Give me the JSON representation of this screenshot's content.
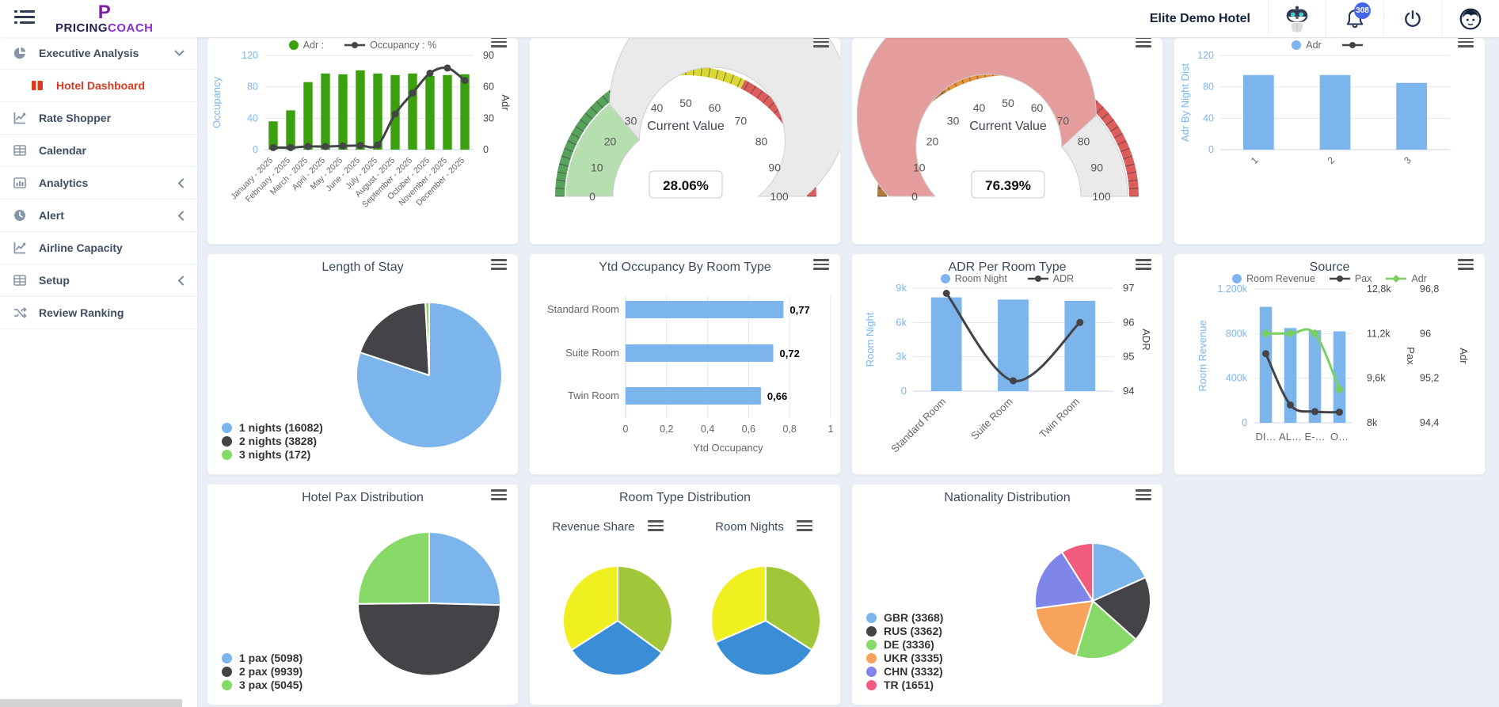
{
  "header": {
    "brand_initial": "P",
    "brand_name_left": "PRICING",
    "brand_name_right": "COACH",
    "hotel_name": "Elite Demo Hotel",
    "notifications_count": "308"
  },
  "sidebar": {
    "items": [
      {
        "label": "Executive Analysis",
        "icon": "pie",
        "chevron": "down"
      },
      {
        "label": "Hotel Dashboard",
        "icon": "dashboard",
        "sub": true,
        "active": true
      },
      {
        "label": "Rate Shopper",
        "icon": "chartline"
      },
      {
        "label": "Calendar",
        "icon": "table"
      },
      {
        "label": "Analytics",
        "icon": "chartbar",
        "chevron": "left"
      },
      {
        "label": "Alert",
        "icon": "clock",
        "chevron": "left"
      },
      {
        "label": "Airline Capacity",
        "icon": "chartline"
      },
      {
        "label": "Setup",
        "icon": "table",
        "chevron": "left"
      },
      {
        "label": "Review Ranking",
        "icon": "shuffle"
      }
    ]
  },
  "charts": {
    "monthly": {
      "legend": [
        {
          "label": "Adr :",
          "color": "#3aa00e",
          "shape": "circle"
        },
        {
          "label": "Occupancy : %",
          "color": "#434348",
          "shape": "line"
        }
      ],
      "categories": [
        "January - 2025",
        "February - 2025",
        "March - 2025",
        "April - 2025",
        "May - 2025",
        "June - 2025",
        "July - 2025",
        "August - 2025",
        "September - 2025",
        "October - 2025",
        "November - 2025",
        "December - 2025"
      ],
      "bar_series": {
        "name": "Adr",
        "color": "#3aa00e",
        "values": [
          36,
          50,
          86,
          97,
          96,
          101,
          97,
          95,
          97,
          94,
          95,
          96
        ]
      },
      "line_series": {
        "name": "Occupancy %",
        "color": "#434348",
        "marker": "circle",
        "values": [
          2,
          2,
          3,
          3,
          3.5,
          4,
          4.5,
          34,
          54,
          73,
          78,
          66
        ],
        "min": 0,
        "max": 90
      },
      "left_axis": {
        "title": "Occupancy",
        "color": "#7cb5ec",
        "ticks": [
          "0",
          "40",
          "80",
          "120"
        ],
        "max": 120
      },
      "right_axis": {
        "title": "Adr",
        "ticks": [
          "0",
          "30",
          "60",
          "90"
        ]
      }
    },
    "gauge_occupancy": {
      "center_label": "Current Value",
      "value": 28.06,
      "display": "28.06%",
      "inner_color": "#b5dfae",
      "rest_color": "#eaeaea",
      "segments": [
        {
          "to": 33,
          "color": "#58a35c"
        },
        {
          "to": 65,
          "color": "#dbd836"
        },
        {
          "to": 100,
          "color": "#dd5c5c"
        }
      ],
      "tick_labels": [
        0,
        10,
        20,
        30,
        40,
        50,
        60,
        70,
        80,
        90,
        100
      ]
    },
    "gauge_adr": {
      "center_label": "Current Value",
      "value": 76.39,
      "display": "76.39%",
      "inner_color": "#e59c9c",
      "rest_color": "#eaeaea",
      "segments": [
        {
          "to": 33,
          "color": "#b07a3e"
        },
        {
          "to": 65,
          "color": "#e6953a"
        },
        {
          "to": 100,
          "color": "#dd5c5c"
        }
      ],
      "tick_labels": [
        0,
        10,
        20,
        30,
        40,
        50,
        60,
        70,
        80,
        90,
        100
      ]
    },
    "adr_by_night": {
      "legend": [
        {
          "label": "Adr",
          "color": "#7cb5ec",
          "shape": "circle"
        },
        {
          "label": "",
          "color": "#434348",
          "shape": "line"
        }
      ],
      "categories": [
        "1",
        "2",
        "3"
      ],
      "bar_series": {
        "name": "Adr",
        "color": "#7cb5ec",
        "values": [
          95,
          95,
          85
        ]
      },
      "left_axis": {
        "title": "Adr By Night Dist",
        "color": "#7cb5ec",
        "ticks": [
          "0",
          "40",
          "80",
          "120"
        ],
        "max": 120
      }
    },
    "length_of_stay": {
      "title": "Length of Stay",
      "slices": [
        {
          "label": "1 nights (16082)",
          "value": 16082,
          "color": "#7cb5ec"
        },
        {
          "label": "2 nights (3828)",
          "value": 3828,
          "color": "#434348"
        },
        {
          "label": "3 nights (172)",
          "value": 172,
          "color": "#87da68"
        }
      ]
    },
    "ytd_occupancy": {
      "title": "Ytd Occupancy By Room Type",
      "categories": [
        "Standard Room",
        "Suite Room",
        "Twin Room"
      ],
      "values": [
        0.77,
        0.72,
        0.66
      ],
      "value_labels": [
        "0,77",
        "0,72",
        "0,66"
      ],
      "color": "#7cb5ec",
      "x_ticks": [
        "0",
        "0,2",
        "0,4",
        "0,6",
        "0,8",
        "1"
      ],
      "xmax": 1,
      "xlabel": "Ytd Occupancy"
    },
    "adr_per_room": {
      "title": "ADR Per Room Type",
      "legend": [
        {
          "label": "Room Night",
          "color": "#7cb5ec",
          "shape": "circle"
        },
        {
          "label": "ADR",
          "color": "#434348",
          "shape": "line"
        }
      ],
      "categories": [
        "Standard Room",
        "Suite Room",
        "Twin Room"
      ],
      "bar_series": {
        "name": "Room Night",
        "color": "#7cb5ec",
        "values": [
          8200,
          8000,
          7900
        ]
      },
      "line_series": {
        "name": "ADR",
        "color": "#434348",
        "marker": "circle",
        "values": [
          96.85,
          94.3,
          96.0
        ],
        "min": 94,
        "max": 97
      },
      "left_axis": {
        "title": "Room Night",
        "color": "#7cb5ec",
        "ticks": [
          "0",
          "3k",
          "6k",
          "9k"
        ],
        "max": 9000
      },
      "right_axis": {
        "title": "ADR",
        "ticks": [
          "94",
          "95",
          "96",
          "97"
        ]
      }
    },
    "source": {
      "title": "Source",
      "legend": [
        {
          "label": "Room Revenue",
          "color": "#7cb5ec",
          "shape": "circle"
        },
        {
          "label": "Pax",
          "color": "#434348",
          "shape": "line"
        },
        {
          "label": "Adr",
          "color": "#7ad05e",
          "shape": "diamond"
        }
      ],
      "categories": [
        "DI…",
        "AL…",
        "E-…",
        "O…"
      ],
      "bar_series": {
        "name": "Room Revenue",
        "color": "#7cb5ec",
        "values": [
          1040,
          850,
          830,
          820
        ]
      },
      "lines": [
        {
          "name": "Pax",
          "color": "#434348",
          "marker": "circle",
          "values": [
            10.48,
            8.64,
            8.4,
            8.38
          ],
          "min": 8,
          "max": 12.8
        },
        {
          "name": "Adr",
          "color": "#7ad05e",
          "marker": "diamond",
          "values": [
            96,
            96,
            96,
            95
          ],
          "min": 94.4,
          "max": 96.8
        }
      ],
      "left_axis": {
        "title": "Room Revenue",
        "color": "#7cb5ec",
        "ticks": [
          "0",
          "400k",
          "800k",
          "1.200k"
        ],
        "max": 1200
      },
      "right_axes": [
        {
          "title": "Pax",
          "ticks": [
            "8k",
            "9,6k",
            "11,2k",
            "12,8k"
          ]
        },
        {
          "title": "Adr",
          "ticks": [
            "94,4",
            "95,2",
            "96",
            "96,8"
          ]
        }
      ]
    },
    "hotel_pax": {
      "title": "Hotel Pax Distribution",
      "slices": [
        {
          "label": "1 pax (5098)",
          "value": 5098,
          "color": "#7cb5ec"
        },
        {
          "label": "2 pax (9939)",
          "value": 9939,
          "color": "#434348"
        },
        {
          "label": "3 pax (5045)",
          "value": 5045,
          "color": "#87da68"
        }
      ]
    },
    "room_type": {
      "title": "Room Type Distribution",
      "pies": [
        {
          "subtitle": "Revenue Share",
          "slices": [
            {
              "label": "green",
              "value": 35,
              "color": "#a2c63a"
            },
            {
              "label": "blue",
              "value": 31,
              "color": "#3a8ed6"
            },
            {
              "label": "yellow",
              "value": 34,
              "color": "#f0f021"
            }
          ]
        },
        {
          "subtitle": "Room Nights",
          "slices": [
            {
              "label": "green",
              "value": 34,
              "color": "#a2c63a"
            },
            {
              "label": "blue",
              "value": 34.5,
              "color": "#3a8ed6"
            },
            {
              "label": "yellow",
              "value": 31.5,
              "color": "#f0f021"
            }
          ]
        }
      ]
    },
    "nationality": {
      "title": "Nationality Distribution",
      "slices": [
        {
          "label": "GBR (3368)",
          "value": 3368,
          "color": "#7cb5ec"
        },
        {
          "label": "RUS (3362)",
          "value": 3362,
          "color": "#434348"
        },
        {
          "label": "DE (3336)",
          "value": 3336,
          "color": "#87da68"
        },
        {
          "label": "UKR (3335)",
          "value": 3335,
          "color": "#f7a35c"
        },
        {
          "label": "CHN (3332)",
          "value": 3332,
          "color": "#8085e9"
        },
        {
          "label": "TR (1651)",
          "value": 1651,
          "color": "#f15c80"
        }
      ]
    }
  }
}
